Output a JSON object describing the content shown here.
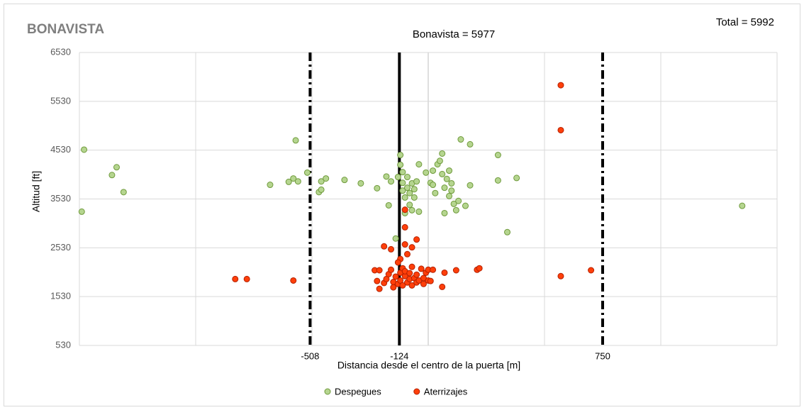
{
  "chart_data": {
    "type": "scatter",
    "title": "BONAVISTA",
    "annotations": [
      "Bonavista = 5977",
      "Total = 5992"
    ],
    "xlabel": "Distancia desde el centro de la puerta [m]",
    "ylabel": "Altitud [ft]",
    "xlim": [
      -1500,
      1500
    ],
    "ylim": [
      530,
      6530
    ],
    "yticks": [
      530,
      1530,
      2530,
      3530,
      4530,
      5530,
      6530
    ],
    "xticks": [
      -508,
      -124,
      750
    ],
    "xtick_line_styles": [
      "dashdot",
      "solid",
      "dashdot"
    ],
    "xgrid": [
      -1500,
      -1000,
      -500,
      0,
      500,
      1000,
      1500
    ],
    "grid": true,
    "legend": "bottom",
    "series": [
      {
        "name": "Despegues",
        "color": "#b5d58f",
        "edge": "#6f9a3c",
        "x": [
          -1480,
          -1490,
          -1360,
          -1340,
          -1310,
          -680,
          -600,
          -580,
          -570,
          -560,
          -520,
          -470,
          -460,
          -460,
          -440,
          -360,
          -290,
          -220,
          -180,
          -170,
          -160,
          -140,
          -130,
          -120,
          -120,
          -110,
          -110,
          -110,
          -100,
          -100,
          -90,
          -90,
          -80,
          -80,
          -70,
          -70,
          -60,
          -60,
          -50,
          -40,
          -40,
          -10,
          10,
          20,
          20,
          30,
          40,
          50,
          60,
          60,
          70,
          70,
          80,
          90,
          90,
          100,
          100,
          110,
          120,
          130,
          140,
          160,
          180,
          180,
          300,
          300,
          340,
          380,
          1350
        ],
        "values": [
          4540,
          3270,
          4020,
          4180,
          3670,
          3820,
          3880,
          3950,
          4730,
          3890,
          4070,
          3670,
          3720,
          3890,
          3950,
          3920,
          3850,
          3750,
          3990,
          3400,
          3890,
          2720,
          3980,
          4430,
          4230,
          4080,
          3860,
          3700,
          3560,
          3240,
          3760,
          3980,
          3410,
          3650,
          3850,
          3300,
          3560,
          3730,
          3890,
          3270,
          4240,
          4070,
          3860,
          4110,
          3820,
          3650,
          4240,
          4310,
          4040,
          4460,
          3240,
          3760,
          3940,
          3590,
          4110,
          3850,
          3700,
          3430,
          3300,
          3490,
          4750,
          3390,
          4650,
          3810,
          4430,
          3910,
          2850,
          3960,
          3390
        ]
      },
      {
        "name": "Aterrizajes",
        "color": "#ff3f0a",
        "edge": "#b32000",
        "x": [
          -830,
          -780,
          -580,
          -100,
          -100,
          -50,
          -70,
          -100,
          -190,
          -160,
          -90,
          -120,
          -130,
          -230,
          -210,
          -220,
          -210,
          -190,
          -180,
          -170,
          -160,
          -150,
          -150,
          -140,
          -130,
          -120,
          -120,
          -110,
          -110,
          -100,
          -100,
          -90,
          -80,
          -80,
          -70,
          -70,
          -60,
          -50,
          -50,
          -40,
          -30,
          -20,
          -20,
          -10,
          0,
          10,
          0,
          20,
          60,
          70,
          120,
          210,
          220,
          570,
          570,
          570,
          700
        ],
        "values": [
          1890,
          1890,
          1860,
          3310,
          2950,
          2700,
          2540,
          2600,
          2560,
          2500,
          2400,
          2300,
          2230,
          2070,
          2070,
          1850,
          1690,
          1810,
          1890,
          1990,
          2080,
          1830,
          1720,
          1940,
          1790,
          2020,
          1860,
          2110,
          1760,
          1950,
          2050,
          1820,
          1890,
          2010,
          1760,
          2140,
          1910,
          1820,
          1980,
          1860,
          2100,
          1910,
          1790,
          2020,
          1860,
          1850,
          2080,
          2080,
          1730,
          2020,
          2070,
          2080,
          2110,
          5860,
          4940,
          1950,
          2070
        ]
      }
    ]
  }
}
